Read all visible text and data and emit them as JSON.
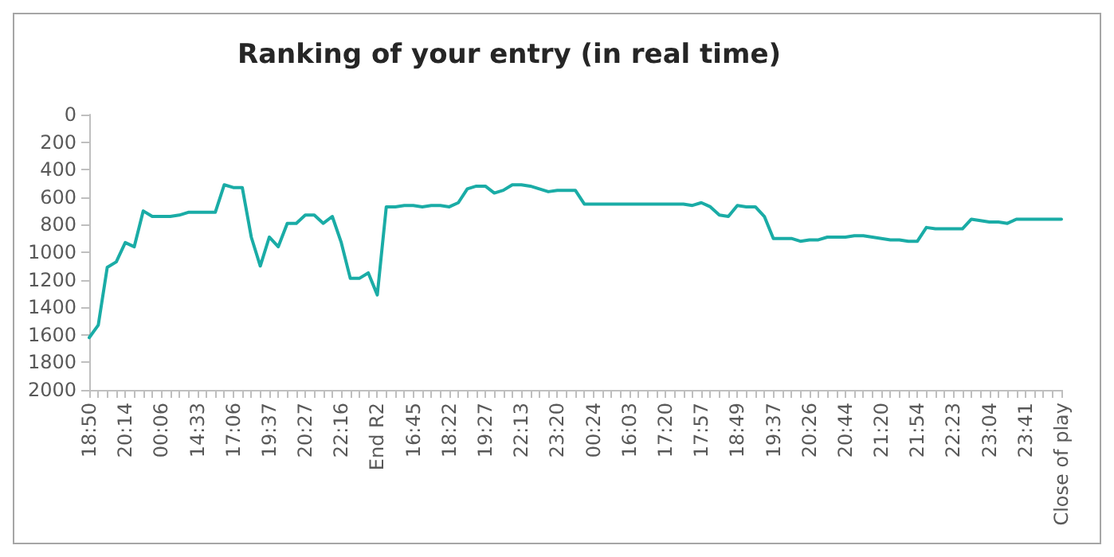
{
  "chart_data": {
    "type": "line",
    "title": "Ranking of your entry (in real time)",
    "categories": [
      "18:50",
      null,
      null,
      null,
      "20:14",
      null,
      null,
      null,
      "00:06",
      null,
      null,
      null,
      "14:33",
      null,
      null,
      null,
      "17:06",
      null,
      null,
      null,
      "19:37",
      null,
      null,
      null,
      "20:27",
      null,
      null,
      null,
      "22:16",
      null,
      null,
      null,
      "End R2",
      null,
      null,
      null,
      "16:45",
      null,
      null,
      null,
      "18:22",
      null,
      null,
      null,
      "19:27",
      null,
      null,
      null,
      "22:13",
      null,
      null,
      null,
      "23:20",
      null,
      null,
      null,
      "00:24",
      null,
      null,
      null,
      "16:03",
      null,
      null,
      null,
      "17:20",
      null,
      null,
      null,
      "17:57",
      null,
      null,
      null,
      "18:49",
      null,
      null,
      null,
      "19:37",
      null,
      null,
      null,
      "20:26",
      null,
      null,
      null,
      "20:44",
      null,
      null,
      null,
      "21:20",
      null,
      null,
      null,
      "21:54",
      null,
      null,
      null,
      "22:23",
      null,
      null,
      null,
      "23:04",
      null,
      null,
      null,
      "23:41",
      null,
      null,
      null,
      "Close of play"
    ],
    "series": [
      {
        "color": "#1aaca6",
        "values": [
          1620,
          1530,
          1110,
          1070,
          930,
          960,
          700,
          740,
          740,
          740,
          730,
          710,
          710,
          710,
          710,
          510,
          530,
          530,
          890,
          1100,
          890,
          960,
          790,
          790,
          730,
          730,
          790,
          740,
          930,
          1190,
          1190,
          1150,
          1310,
          670,
          670,
          660,
          660,
          670,
          660,
          660,
          670,
          640,
          540,
          520,
          520,
          570,
          550,
          510,
          510,
          520,
          540,
          560,
          550,
          550,
          550,
          650,
          650,
          650,
          650,
          650,
          650,
          650,
          650,
          650,
          650,
          650,
          650,
          660,
          640,
          670,
          730,
          740,
          660,
          670,
          670,
          740,
          900,
          900,
          900,
          920,
          910,
          910,
          890,
          890,
          890,
          880,
          880,
          890,
          900,
          910,
          910,
          920,
          920,
          820,
          830,
          830,
          830,
          830,
          760,
          770,
          780,
          780,
          790,
          760,
          760,
          760,
          760,
          760,
          760
        ]
      }
    ],
    "ylim": [
      2000,
      0
    ],
    "yticks": [
      0,
      200,
      400,
      600,
      800,
      1000,
      1200,
      1400,
      1600,
      1800,
      2000
    ],
    "grid": false,
    "marker": "none",
    "line_style": "solid"
  }
}
